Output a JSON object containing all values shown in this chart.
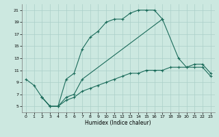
{
  "xlabel": "Humidex (Indice chaleur)",
  "xlim": [
    -0.5,
    23.5
  ],
  "ylim": [
    4,
    22
  ],
  "xticks": [
    0,
    1,
    2,
    3,
    4,
    5,
    6,
    7,
    8,
    9,
    10,
    11,
    12,
    13,
    14,
    15,
    16,
    17,
    18,
    19,
    20,
    21,
    22,
    23
  ],
  "yticks": [
    5,
    7,
    9,
    11,
    13,
    15,
    17,
    19,
    21
  ],
  "bg_color": "#cce8e0",
  "line_color": "#1a6b5a",
  "grid_color": "#aacfc8",
  "curve1_x": [
    0,
    1,
    2,
    3,
    4,
    5,
    6,
    7,
    8,
    9,
    10,
    11,
    12,
    13,
    14,
    15,
    16,
    17
  ],
  "curve1_y": [
    9.5,
    8.5,
    6.5,
    5.0,
    5.0,
    9.5,
    10.5,
    14.5,
    16.5,
    17.5,
    19.0,
    19.5,
    19.5,
    20.5,
    21.0,
    21.0,
    21.0,
    19.5
  ],
  "curve2_x": [
    2,
    3,
    4,
    5,
    6,
    7,
    17,
    19,
    20,
    21,
    22,
    23
  ],
  "curve2_y": [
    6.5,
    5.0,
    5.0,
    6.5,
    7.0,
    9.5,
    19.5,
    13.0,
    11.5,
    11.5,
    11.5,
    10.0
  ],
  "curve3_x": [
    2,
    3,
    4,
    5,
    6,
    7,
    8,
    9,
    10,
    11,
    12,
    13,
    14,
    15,
    16,
    17,
    18,
    19,
    20,
    21,
    22,
    23
  ],
  "curve3_y": [
    6.5,
    5.0,
    5.0,
    6.0,
    6.5,
    7.5,
    8.0,
    8.5,
    9.0,
    9.5,
    10.0,
    10.5,
    10.5,
    11.0,
    11.0,
    11.0,
    11.5,
    11.5,
    11.5,
    12.0,
    12.0,
    10.5
  ],
  "marker": "+",
  "markersize": 3,
  "linewidth": 0.8
}
